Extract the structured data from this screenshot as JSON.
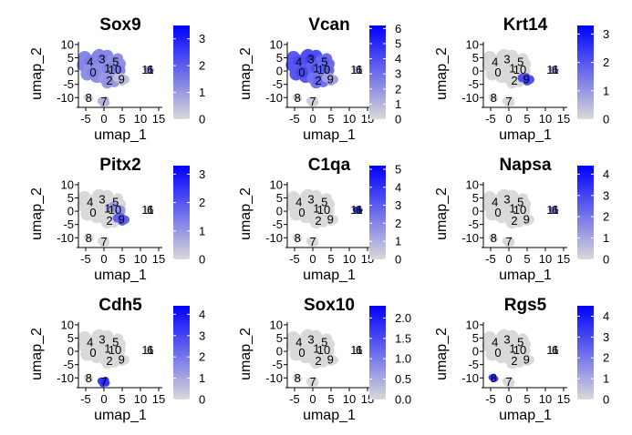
{
  "chart_data": {
    "type": "scatter",
    "axis_labels": {
      "x": "umap_1",
      "y": "umap_2"
    },
    "xlim": [
      -7,
      16
    ],
    "ylim": [
      -13,
      11
    ],
    "x_ticks": [
      -5,
      0,
      5,
      10,
      15
    ],
    "x_tick_labels": [
      "-5",
      "0",
      "5",
      "10",
      "15"
    ],
    "y_ticks": [
      10,
      5,
      0,
      -5,
      -10
    ],
    "y_tick_labels": [
      "10",
      "5",
      "0",
      "-5",
      "-10"
    ],
    "low_color": "#d9d9d9",
    "high_color": "#0000ff",
    "clusters": [
      {
        "label": "4",
        "x": -3.8,
        "y": 3.5
      },
      {
        "label": "3",
        "x": -0.5,
        "y": 4.5
      },
      {
        "label": "5",
        "x": 3.2,
        "y": 3.5
      },
      {
        "label": "0",
        "x": -3.0,
        "y": -0.5
      },
      {
        "label": "1",
        "x": 1.0,
        "y": 1.0
      },
      {
        "label": "10",
        "x": 3.0,
        "y": 0.5
      },
      {
        "label": "2",
        "x": 1.5,
        "y": -3.5
      },
      {
        "label": "9",
        "x": 4.8,
        "y": -3.0
      },
      {
        "label": "11",
        "x": 12.0,
        "y": 0.5
      },
      {
        "label": "6",
        "x": 12.7,
        "y": 0.5
      },
      {
        "label": "8",
        "x": -4.2,
        "y": -10.0
      },
      {
        "label": "7",
        "x": 0.0,
        "y": -11.5
      }
    ],
    "panels": [
      {
        "title": "Sox9",
        "legend_max": 3.5,
        "legend_ticks": [
          0,
          1,
          2,
          3
        ],
        "legend_labels": [
          "0",
          "1",
          "2",
          "3"
        ],
        "expr": {
          "4": 0.45,
          "3": 0.45,
          "5": 0.4,
          "0": 0.4,
          "1": 0.4,
          "10": 0.45,
          "2": 0.35,
          "9": 0.15,
          "11": 0.35,
          "6": 0.3,
          "8": 0.05,
          "7": 0.2
        }
      },
      {
        "title": "Vcan",
        "legend_max": 6.2,
        "legend_ticks": [
          0,
          1,
          2,
          3,
          4,
          5,
          6
        ],
        "legend_labels": [
          "0",
          "1",
          "2",
          "3",
          "4",
          "5",
          "6"
        ],
        "expr": {
          "4": 0.7,
          "3": 0.75,
          "5": 0.6,
          "0": 0.7,
          "1": 0.65,
          "10": 0.6,
          "2": 0.55,
          "9": 0.3,
          "11": 0.2,
          "6": 0.15,
          "8": 0.05,
          "7": 0.05
        }
      },
      {
        "title": "Krt14",
        "legend_max": 3.3,
        "legend_ticks": [
          0,
          1,
          2,
          3
        ],
        "legend_labels": [
          "0",
          "1",
          "2",
          "3"
        ],
        "expr": {
          "4": 0,
          "3": 0,
          "5": 0,
          "0": 0,
          "1": 0,
          "10": 0,
          "2": 0,
          "9": 0.75,
          "11": 0.35,
          "6": 0.2,
          "8": 0,
          "7": 0
        }
      },
      {
        "title": "Pitx2",
        "legend_max": 3.3,
        "legend_ticks": [
          0,
          1,
          2,
          3
        ],
        "legend_labels": [
          "0",
          "1",
          "2",
          "3"
        ],
        "expr": {
          "4": 0,
          "3": 0,
          "5": 0,
          "0": 0,
          "1": 0,
          "10": 0.35,
          "2": 0,
          "9": 0.65,
          "11": 0,
          "6": 0,
          "8": 0,
          "7": 0
        }
      },
      {
        "title": "C1qa",
        "legend_max": 5.2,
        "legend_ticks": [
          0,
          1,
          2,
          3,
          4,
          5
        ],
        "legend_labels": [
          "0",
          "1",
          "2",
          "3",
          "4",
          "5"
        ],
        "expr": {
          "4": 0,
          "3": 0,
          "5": 0,
          "0": 0,
          "1": 0,
          "10": 0,
          "2": 0,
          "9": 0,
          "11": 0.85,
          "6": 0.85,
          "8": 0,
          "7": 0
        }
      },
      {
        "title": "Napsa",
        "legend_max": 4.4,
        "legend_ticks": [
          0,
          1,
          2,
          3,
          4
        ],
        "legend_labels": [
          "0",
          "1",
          "2",
          "3",
          "4"
        ],
        "expr": {
          "4": 0,
          "3": 0,
          "5": 0,
          "0": 0,
          "1": 0,
          "10": 0,
          "2": 0,
          "9": 0,
          "11": 0.55,
          "6": 0.35,
          "8": 0,
          "7": 0
        }
      },
      {
        "title": "Cdh5",
        "legend_max": 4.4,
        "legend_ticks": [
          0,
          1,
          2,
          3,
          4
        ],
        "legend_labels": [
          "0",
          "1",
          "2",
          "3",
          "4"
        ],
        "expr": {
          "4": 0,
          "3": 0,
          "5": 0,
          "0": 0,
          "1": 0,
          "10": 0,
          "2": 0,
          "9": 0,
          "11": 0,
          "6": 0,
          "8": 0,
          "7": 0.85
        }
      },
      {
        "title": "Sox10",
        "legend_max": 2.3,
        "legend_ticks": [
          0,
          0.5,
          1,
          1.5,
          2
        ],
        "legend_labels": [
          "0.0",
          "0.5",
          "1.0",
          "1.5",
          "2.0"
        ],
        "expr": {
          "4": 0,
          "3": 0,
          "5": 0,
          "0": 0,
          "1": 0,
          "10": 0,
          "2": 0,
          "9": 0,
          "11": 0,
          "6": 0,
          "8": 0,
          "7": 0
        }
      },
      {
        "title": "Rgs5",
        "legend_max": 4.5,
        "legend_ticks": [
          0,
          1,
          2,
          3,
          4
        ],
        "legend_labels": [
          "0",
          "1",
          "2",
          "3",
          "4"
        ],
        "expr": {
          "4": 0,
          "3": 0,
          "5": 0,
          "0": 0,
          "1": 0,
          "10": 0,
          "2": 0,
          "9": 0,
          "11": 0,
          "6": 0,
          "8": 0.85,
          "7": 0
        }
      }
    ]
  }
}
